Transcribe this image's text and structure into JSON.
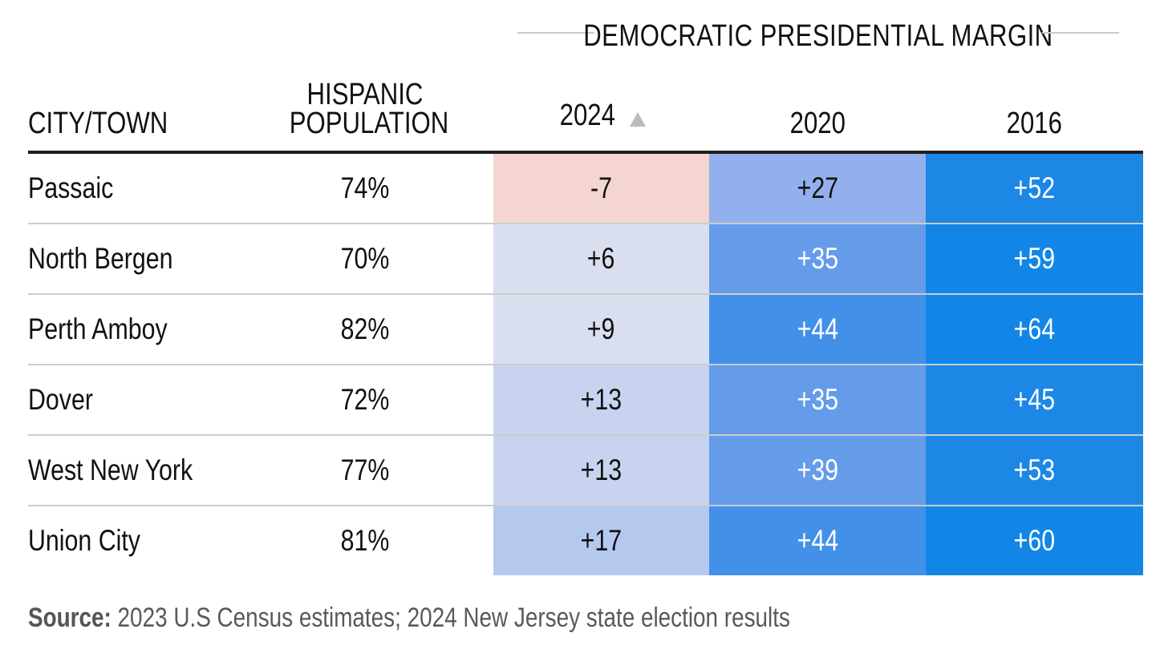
{
  "header": {
    "group_title": "DEMOCRATIC PRESIDENTIAL MARGIN",
    "city_label": "CITY/TOWN",
    "hispanic_label_line1": "HISPANIC",
    "hispanic_label_line2": "POPULATION",
    "year_2024": "2024",
    "year_2020": "2020",
    "year_2016": "2016",
    "sort_icon": "sort-ascending-triangle"
  },
  "chart_data": {
    "type": "table",
    "title": "DEMOCRATIC PRESIDENTIAL MARGIN",
    "columns": [
      "CITY/TOWN",
      "HISPANIC POPULATION",
      "2024",
      "2020",
      "2016"
    ],
    "rows": [
      {
        "city": "Passaic",
        "hispanic": "74%",
        "m2024": "-7",
        "m2020": "+27",
        "m2016": "+52"
      },
      {
        "city": "North Bergen",
        "hispanic": "70%",
        "m2024": "+6",
        "m2020": "+35",
        "m2016": "+59"
      },
      {
        "city": "Perth Amboy",
        "hispanic": "82%",
        "m2024": "+9",
        "m2020": "+44",
        "m2016": "+64"
      },
      {
        "city": "Dover",
        "hispanic": "72%",
        "m2024": "+13",
        "m2020": "+35",
        "m2016": "+45"
      },
      {
        "city": "West New York",
        "hispanic": "77%",
        "m2024": "+13",
        "m2020": "+39",
        "m2016": "+53"
      },
      {
        "city": "Union City",
        "hispanic": "81%",
        "m2024": "+17",
        "m2020": "+44",
        "m2016": "+60"
      }
    ],
    "cell_colors": {
      "m2024": [
        "#f5d5cf",
        "#dadff0",
        "#dadff0",
        "#c8d4ef",
        "#c8d4ef",
        "#b5c9ef"
      ],
      "m2020": [
        "#92b1ec",
        "#649cea",
        "#4390e8",
        "#649cea",
        "#649cea",
        "#4390e8"
      ],
      "m2016": [
        "#1d87e6",
        "#1186e6",
        "#1186e6",
        "#1d87e6",
        "#1d87e6",
        "#1186e6"
      ]
    },
    "text_colors": {
      "m2024": [
        "#111111",
        "#111111",
        "#111111",
        "#111111",
        "#111111",
        "#111111"
      ],
      "m2020": [
        "#111111",
        "#ffffff",
        "#ffffff",
        "#ffffff",
        "#ffffff",
        "#ffffff"
      ],
      "m2016": [
        "#ffffff",
        "#ffffff",
        "#ffffff",
        "#ffffff",
        "#ffffff",
        "#ffffff"
      ]
    }
  },
  "footer": {
    "source_label": "Source:",
    "source_text": " 2023 U.S Census estimates; 2024 New Jersey state election results"
  }
}
